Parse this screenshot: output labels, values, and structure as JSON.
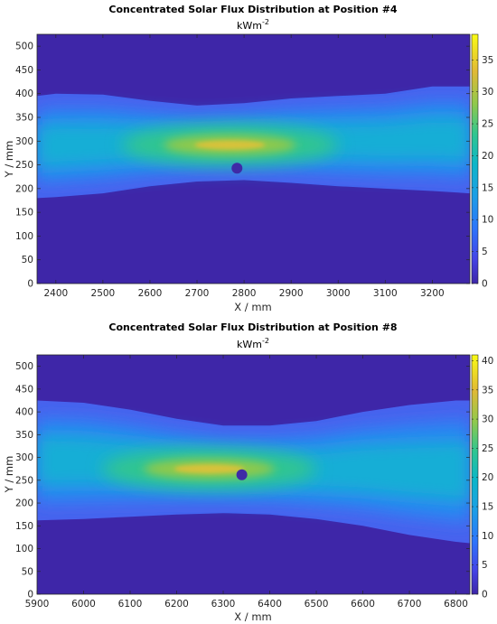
{
  "chart_data": [
    {
      "type": "heatmap",
      "title": "Concentrated Solar Flux Distribution at Position #4",
      "unit_label": "kWm",
      "unit_exponent": "-2",
      "xlabel": "X / mm",
      "ylabel": "Y / mm",
      "xlim": [
        2360,
        3280
      ],
      "ylim": [
        0,
        525
      ],
      "xticks": [
        2400,
        2500,
        2600,
        2700,
        2800,
        2900,
        3000,
        3100,
        3200
      ],
      "yticks": [
        0,
        50,
        100,
        150,
        200,
        250,
        300,
        350,
        400,
        450,
        500
      ],
      "colorbar": {
        "range": [
          0,
          39
        ],
        "ticks": [
          0,
          5,
          10,
          15,
          20,
          25,
          30,
          35
        ]
      },
      "band": {
        "x": [
          2360,
          2400,
          2500,
          2600,
          2700,
          2800,
          2900,
          3000,
          3100,
          3200,
          3280
        ],
        "top": [
          395,
          400,
          398,
          385,
          375,
          380,
          390,
          395,
          400,
          415,
          415
        ],
        "bottom": [
          180,
          182,
          190,
          205,
          215,
          218,
          212,
          205,
          200,
          195,
          190
        ]
      },
      "peak": {
        "x": 2770,
        "y": 292,
        "value": 32
      },
      "marker": {
        "x": 2785,
        "y": 243
      }
    },
    {
      "type": "heatmap",
      "title": "Concentrated Solar Flux Distribution at Position #8",
      "unit_label": "kWm",
      "unit_exponent": "-2",
      "xlabel": "X / mm",
      "ylabel": "Y / mm",
      "xlim": [
        5900,
        6830
      ],
      "ylim": [
        0,
        525
      ],
      "xticks": [
        5900,
        6000,
        6100,
        6200,
        6300,
        6400,
        6500,
        6600,
        6700,
        6800
      ],
      "yticks": [
        0,
        50,
        100,
        150,
        200,
        250,
        300,
        350,
        400,
        450,
        500
      ],
      "colorbar": {
        "range": [
          0,
          41
        ],
        "ticks": [
          0,
          5,
          10,
          15,
          20,
          25,
          30,
          35,
          40
        ]
      },
      "band": {
        "x": [
          5900,
          6000,
          6100,
          6200,
          6300,
          6400,
          6500,
          6600,
          6700,
          6800,
          6830
        ],
        "top": [
          425,
          420,
          405,
          385,
          370,
          370,
          380,
          400,
          415,
          425,
          425
        ],
        "bottom": [
          162,
          165,
          170,
          175,
          178,
          175,
          165,
          150,
          130,
          115,
          112
        ]
      },
      "peak": {
        "x": 6270,
        "y": 275,
        "value": 30
      },
      "marker": {
        "x": 6340,
        "y": 262
      }
    }
  ]
}
